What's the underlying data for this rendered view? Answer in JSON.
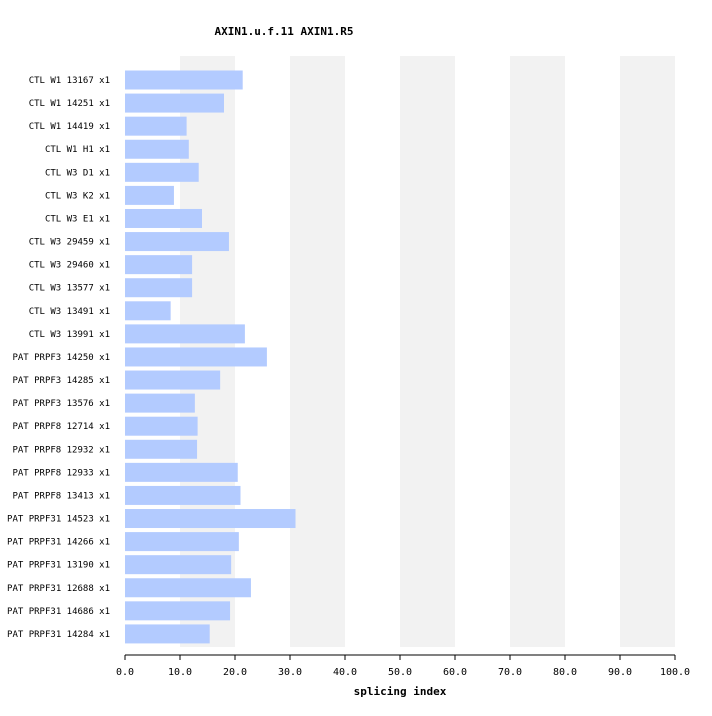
{
  "chart_data": {
    "type": "bar",
    "orientation": "horizontal",
    "title": "AXIN1.u.f.11  AXIN1.R5",
    "xlabel": "splicing index",
    "ylabel": "",
    "xlim": [
      0,
      100
    ],
    "xticks": [
      "0.0",
      "10.0",
      "20.0",
      "30.0",
      "40.0",
      "50.0",
      "60.0",
      "70.0",
      "80.0",
      "90.0",
      "100.0"
    ],
    "grid": "alternating vertical bands",
    "legend": "none",
    "colors": {
      "bar": "#b3cbff",
      "band": "#f2f2f2",
      "axis": "#000000"
    },
    "categories": [
      "CTL W1 13167 x1",
      "CTL W1 14251 x1",
      "CTL W1 14419 x1",
      "CTL W1 H1 x1",
      "CTL W3 D1 x1",
      "CTL W3 K2 x1",
      "CTL W3 E1 x1",
      "CTL W3 29459 x1",
      "CTL W3 29460 x1",
      "CTL W3 13577 x1",
      "CTL W3 13491 x1",
      "CTL W3 13991 x1",
      "PAT PRPF3 14250 x1",
      "PAT PRPF3 14285 x1",
      "PAT PRPF3 13576 x1",
      "PAT PRPF8 12714 x1",
      "PAT PRPF8 12932 x1",
      "PAT PRPF8 12933 x1",
      "PAT PRPF8 13413 x1",
      "PAT PRPF31 14523 x1",
      "PAT PRPF31 14266 x1",
      "PAT PRPF31 13190 x1",
      "PAT PRPF31 12688 x1",
      "PAT PRPF31 14686 x1",
      "PAT PRPF31 14284 x1"
    ],
    "values": [
      21.4,
      18.0,
      11.2,
      11.6,
      13.4,
      8.9,
      14.0,
      18.9,
      12.2,
      12.2,
      8.3,
      21.8,
      25.8,
      17.3,
      12.7,
      13.2,
      13.1,
      20.5,
      21.0,
      31.0,
      20.7,
      19.3,
      22.9,
      19.1,
      15.4
    ]
  }
}
